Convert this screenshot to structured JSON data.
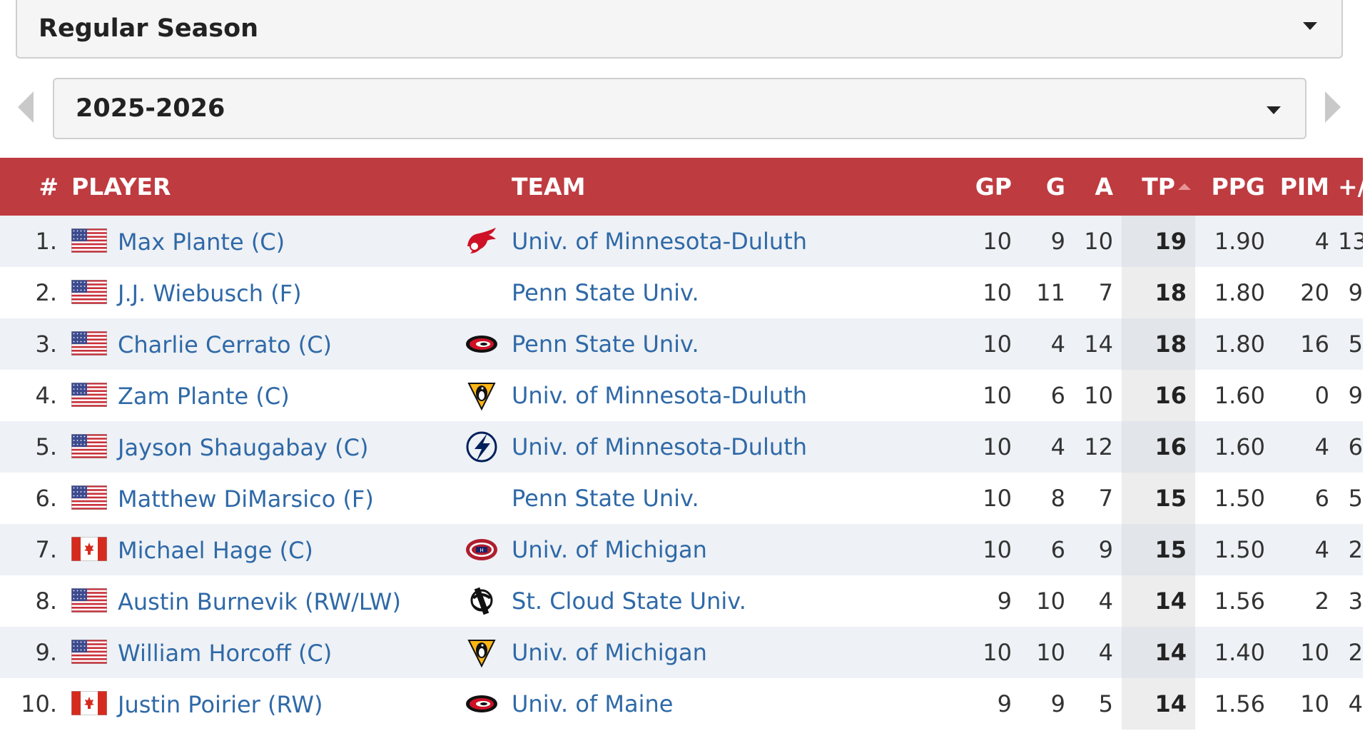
{
  "filters": {
    "season_type": "Regular Season",
    "season": "2025-2026"
  },
  "table": {
    "headers": {
      "rank": "#",
      "player": "PLAYER",
      "team": "TEAM",
      "gp": "GP",
      "g": "G",
      "a": "A",
      "tp": "TP",
      "ppg": "PPG",
      "pim": "PIM",
      "pm": "+/-"
    },
    "sorted_by": "TP",
    "rows": [
      {
        "rank": "1.",
        "flag": "usa",
        "player": "Max Plante (C)",
        "logo": "red-wings-logo",
        "team": "Univ. of Minnesota-Duluth",
        "gp": "10",
        "g": "9",
        "a": "10",
        "tp": "19",
        "ppg": "1.90",
        "pim": "4",
        "pm": "13"
      },
      {
        "rank": "2.",
        "flag": "usa",
        "player": "J.J. Wiebusch (F)",
        "logo": "",
        "team": "Penn State Univ.",
        "gp": "10",
        "g": "11",
        "a": "7",
        "tp": "18",
        "ppg": "1.80",
        "pim": "20",
        "pm": "9"
      },
      {
        "rank": "3.",
        "flag": "usa",
        "player": "Charlie Cerrato (C)",
        "logo": "hurricanes-logo",
        "team": "Penn State Univ.",
        "gp": "10",
        "g": "4",
        "a": "14",
        "tp": "18",
        "ppg": "1.80",
        "pim": "16",
        "pm": "5"
      },
      {
        "rank": "4.",
        "flag": "usa",
        "player": "Zam Plante (C)",
        "logo": "penguins-logo",
        "team": "Univ. of Minnesota-Duluth",
        "gp": "10",
        "g": "6",
        "a": "10",
        "tp": "16",
        "ppg": "1.60",
        "pim": "0",
        "pm": "9"
      },
      {
        "rank": "5.",
        "flag": "usa",
        "player": "Jayson Shaugabay (C)",
        "logo": "lightning-logo",
        "team": "Univ. of Minnesota-Duluth",
        "gp": "10",
        "g": "4",
        "a": "12",
        "tp": "16",
        "ppg": "1.60",
        "pim": "4",
        "pm": "6"
      },
      {
        "rank": "6.",
        "flag": "usa",
        "player": "Matthew DiMarsico (F)",
        "logo": "",
        "team": "Penn State Univ.",
        "gp": "10",
        "g": "8",
        "a": "7",
        "tp": "15",
        "ppg": "1.50",
        "pim": "6",
        "pm": "5"
      },
      {
        "rank": "7.",
        "flag": "canada",
        "player": "Michael Hage (C)",
        "logo": "canadiens-logo",
        "team": "Univ. of Michigan",
        "gp": "10",
        "g": "6",
        "a": "9",
        "tp": "15",
        "ppg": "1.50",
        "pim": "4",
        "pm": "2"
      },
      {
        "rank": "8.",
        "flag": "usa",
        "player": "Austin Burnevik (RW/LW)",
        "logo": "ducks-logo",
        "team": "St. Cloud State Univ.",
        "gp": "9",
        "g": "10",
        "a": "4",
        "tp": "14",
        "ppg": "1.56",
        "pim": "2",
        "pm": "3"
      },
      {
        "rank": "9.",
        "flag": "usa",
        "player": "William Horcoff (C)",
        "logo": "penguins-logo",
        "team": "Univ. of Michigan",
        "gp": "10",
        "g": "10",
        "a": "4",
        "tp": "14",
        "ppg": "1.40",
        "pim": "10",
        "pm": "2"
      },
      {
        "rank": "10.",
        "flag": "canada",
        "player": "Justin Poirier (RW)",
        "logo": "hurricanes-logo",
        "team": "Univ. of Maine",
        "gp": "9",
        "g": "9",
        "a": "5",
        "tp": "14",
        "ppg": "1.56",
        "pim": "10",
        "pm": "4"
      }
    ]
  },
  "colors": {
    "header_bg": "#be3b40",
    "link": "#2f69a7",
    "stripe": "#eef1f5",
    "tp_column": "#e2e5e9"
  }
}
